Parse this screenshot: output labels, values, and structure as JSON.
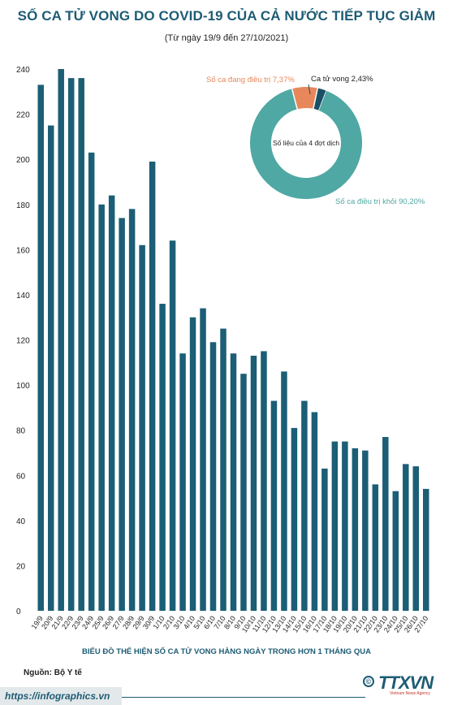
{
  "header": {
    "title": "SỐ CA TỬ VONG DO COVID-19 CỦA CẢ NƯỚC TIẾP TỤC GIẢM",
    "subtitle": "(Từ ngày 19/9 đến 27/10/2021)"
  },
  "caption": "BIỂU ĐỒ THỂ HIỆN SỐ CA TỬ VONG HÀNG NGÀY TRONG HƠN 1 THÁNG QUA",
  "source": "Nguồn: Bộ Y tế",
  "footer": {
    "url": "https://infographics.vn",
    "logo": "TTXVN",
    "logo_sub": "Vietnam News Agency"
  },
  "colors": {
    "bar": "#1b5e76",
    "donut_recovered": "#4fa8a3",
    "donut_treating": "#e8875b",
    "donut_deaths": "#1b4f66",
    "title": "#1d5c74"
  },
  "chart_data": [
    {
      "type": "bar",
      "title": "",
      "xlabel": "",
      "ylabel": "",
      "ylim": [
        0,
        240
      ],
      "yticks": [
        0,
        20,
        40,
        60,
        80,
        100,
        120,
        140,
        160,
        180,
        200,
        220,
        240
      ],
      "grid": false,
      "categories": [
        "19/9",
        "20/9",
        "21/9",
        "22/9",
        "23/9",
        "24/9",
        "25/9",
        "26/9",
        "27/9",
        "28/9",
        "29/9",
        "30/9",
        "1/10",
        "2/10",
        "3/10",
        "4/10",
        "5/10",
        "6/10",
        "7/10",
        "8/10",
        "9/10",
        "10/10",
        "11/10",
        "12/10",
        "13/10",
        "14/10",
        "15/10",
        "16/10",
        "17/10",
        "18/10",
        "19/10",
        "20/10",
        "21/10",
        "22/10",
        "23/10",
        "24/10",
        "25/10",
        "26/10",
        "27/10"
      ],
      "values": [
        233,
        215,
        240,
        236,
        236,
        203,
        180,
        184,
        174,
        178,
        162,
        199,
        136,
        164,
        114,
        130,
        134,
        119,
        125,
        114,
        105,
        113,
        115,
        93,
        106,
        81,
        93,
        88,
        63,
        75,
        75,
        72,
        71,
        56,
        77,
        53,
        65,
        64,
        54
      ]
    },
    {
      "type": "pie",
      "center_label": "Số liệu của 4 đợt dịch",
      "slices": [
        {
          "label": "Số ca điều trị khỏi 90,20%",
          "value": 90.2
        },
        {
          "label": "Số ca đang điều trị 7,37%",
          "value": 7.37
        },
        {
          "label": "Ca tử vong 2,43%",
          "value": 2.43
        }
      ]
    }
  ]
}
